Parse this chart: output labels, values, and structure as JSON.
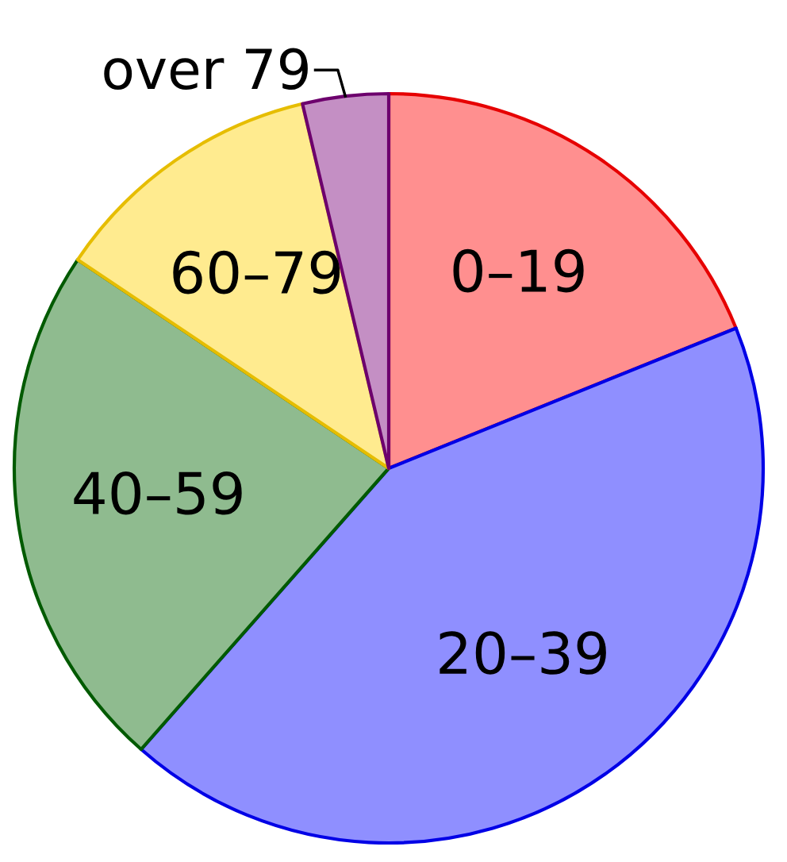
{
  "chart_data": {
    "type": "pie",
    "categories": [
      "0–19",
      "20–39",
      "40–59",
      "60–79",
      "over 79"
    ],
    "values": [
      18.9,
      42.6,
      22.9,
      11.9,
      3.7
    ],
    "colors": [
      "#ff8f8f",
      "#8f8fff",
      "#8fbb8f",
      "#ffeb8f",
      "#c48fc4"
    ]
  }
}
